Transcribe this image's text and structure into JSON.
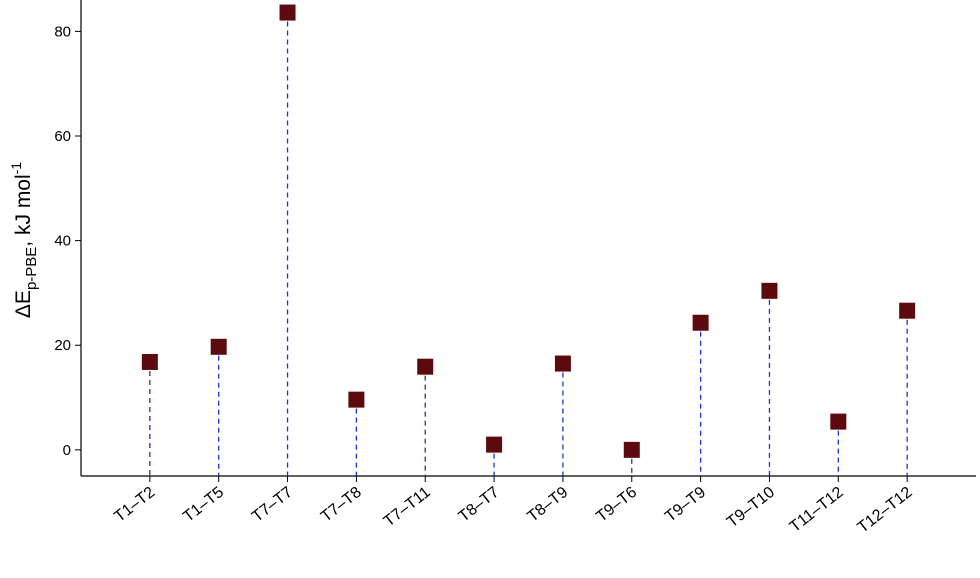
{
  "chart_data": {
    "type": "stem",
    "ylabel": {
      "main": "ΔE",
      "sub": "p-PBE",
      "rest": ", kJ mol",
      "sup": "-1"
    },
    "categories": [
      "T1–T2",
      "T1–T5",
      "T7–T7",
      "T7–T8",
      "T7–T11",
      "T8–T7",
      "T8–T9",
      "T9–T6",
      "T9–T9",
      "T9–T10",
      "T11–T12",
      "T12–T12"
    ],
    "values": [
      16.8,
      19.7,
      83.6,
      9.6,
      15.9,
      1.0,
      16.5,
      0.0,
      24.3,
      30.4,
      5.4,
      26.6
    ],
    "color": "#5c0a0e",
    "stem_color": "#1f2fd6",
    "ylim": [
      -5,
      86
    ],
    "yticks": [
      0,
      20,
      40,
      60,
      80
    ],
    "grid": false
  }
}
